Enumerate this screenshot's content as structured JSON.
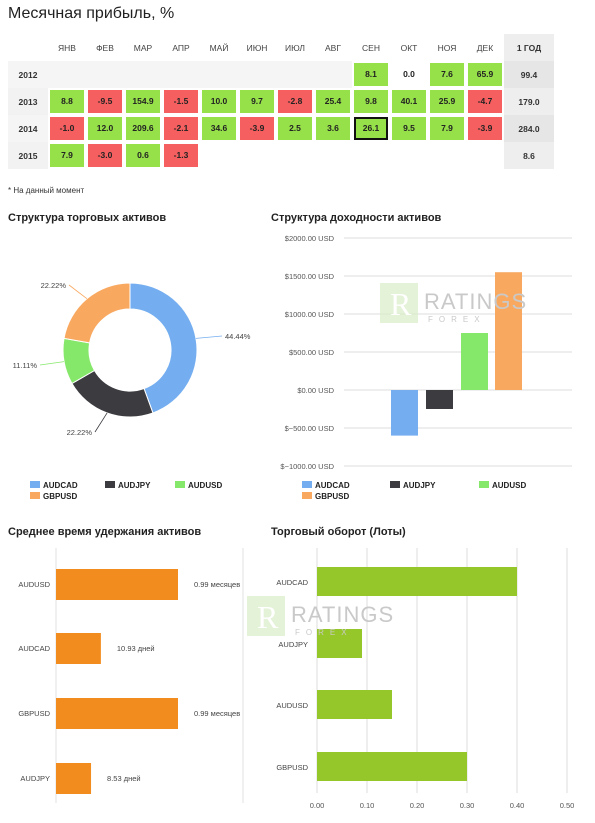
{
  "page": {
    "title": "Месячная прибыль, %",
    "footnote": "* На данный момент",
    "watermark": {
      "word": "RATINGS",
      "sub": "FOREX",
      "letter": "R"
    }
  },
  "profit_table": {
    "months": [
      "ЯНВ",
      "ФЕВ",
      "МАР",
      "АПР",
      "МАЙ",
      "ИЮН",
      "ИЮЛ",
      "АВГ",
      "СЕН",
      "ОКТ",
      "НОЯ",
      "ДЕК"
    ],
    "year_header": "1 ГОД",
    "rows": [
      {
        "year": "2012",
        "values": [
          "",
          "",
          "",
          "",
          "",
          "",
          "",
          "",
          "8.1",
          "0.0",
          "7.6",
          "65.9"
        ],
        "total": "99.4"
      },
      {
        "year": "2013",
        "values": [
          "8.8",
          "-9.5",
          "154.9",
          "-1.5",
          "10.0",
          "9.7",
          "-2.8",
          "25.4",
          "9.8",
          "40.1",
          "25.9",
          "-4.7"
        ],
        "total": "179.0"
      },
      {
        "year": "2014",
        "values": [
          "-1.0",
          "12.0",
          "209.6",
          "-2.1",
          "34.6",
          "-3.9",
          "2.5",
          "3.6",
          "26.1",
          "9.5",
          "7.9",
          "-3.9"
        ],
        "total": "284.0"
      },
      {
        "year": "2015",
        "values": [
          "7.9",
          "-3.0",
          "0.6",
          "-1.3",
          "",
          "",
          "",
          "",
          "",
          "",
          "",
          ""
        ],
        "total": "8.6"
      }
    ],
    "highlight": {
      "row": 2,
      "col": 8
    }
  },
  "colors": {
    "AUDCAD": "#74aef0",
    "AUDJPY": "#3b3b40",
    "AUDUSD": "#86e86a",
    "GBPUSD": "#f9a860",
    "orange": "#f28c1e",
    "green": "#96c72a",
    "pos": "#96e04a",
    "neg": "#f55f5f"
  },
  "chart_data": [
    {
      "id": "structure",
      "type": "pie",
      "title": "Структура торговых активов",
      "labels": [
        "AUDCAD",
        "AUDJPY",
        "AUDUSD",
        "GBPUSD"
      ],
      "values": [
        44.44,
        22.22,
        11.11,
        22.22
      ],
      "value_labels": [
        "44.44%",
        "22.22%",
        "11.11%",
        "22.22%"
      ],
      "donut": true
    },
    {
      "id": "profit_structure",
      "type": "bar",
      "title": "Структура доходности активов",
      "categories": [
        "AUDCAD",
        "AUDJPY",
        "AUDUSD",
        "GBPUSD"
      ],
      "values": [
        -600,
        -250,
        750,
        1550
      ],
      "ylim": [
        -1000,
        2000
      ],
      "yticks": [
        2000,
        1500,
        1000,
        500,
        0,
        -500,
        -1000
      ],
      "ytick_labels": [
        "$2000.00 USD",
        "$1500.00 USD",
        "$1000.00 USD",
        "$500.00 USD",
        "$0.00 USD",
        "$−500.00 USD",
        "$−1000.00 USD"
      ],
      "grid": true,
      "legend": "bottom"
    },
    {
      "id": "holding_time",
      "type": "bar",
      "orientation": "horizontal",
      "title": "Среднее время удержания активов",
      "categories": [
        "AUDUSD",
        "AUDCAD",
        "GBPUSD",
        "AUDJPY"
      ],
      "values_days": [
        29.7,
        10.93,
        29.7,
        8.53
      ],
      "value_labels": [
        "0.99 месяцев",
        "10.93 дней",
        "0.99 месяцев",
        "8.53 дней"
      ]
    },
    {
      "id": "turnover",
      "type": "bar",
      "orientation": "horizontal",
      "title": "Торговый оборот (Лоты)",
      "categories": [
        "AUDCAD",
        "AUDJPY",
        "AUDUSD",
        "GBPUSD"
      ],
      "values": [
        0.4,
        0.09,
        0.15,
        0.3
      ],
      "xlim": [
        0,
        0.5
      ],
      "xticks": [
        0,
        0.1,
        0.2,
        0.3,
        0.4,
        0.5
      ],
      "xtick_labels": [
        "0.00",
        "0.10",
        "0.20",
        "0.30",
        "0.40",
        "0.50"
      ],
      "grid": true
    }
  ]
}
